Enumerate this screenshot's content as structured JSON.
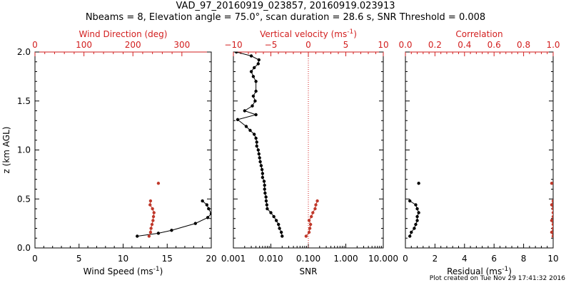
{
  "title_line1": "VAD_97_20160919_023857, 20160919.023913",
  "title_line2": "Nbeams = 8, Elevation angle = 75.0°, scan duration = 28.6 s, SNR Threshold = 0.008",
  "footer": "Plot created on Tue Nov 29 17:41:32 2016",
  "colors": {
    "black_series": "#000000",
    "red_series": "#c0392b",
    "red_axis": "#d21e1e",
    "dotted_line": "#d21e1e"
  },
  "chart_data": [
    {
      "type": "line",
      "panel": "left",
      "ylabel": "z (km AGL)",
      "ylim": [
        0,
        2.0
      ],
      "y_ticks": [
        "0.0",
        "0.5",
        "1.0",
        "1.5",
        "2.0"
      ],
      "bottom_axis": {
        "label": "Wind Speed",
        "unit": "(ms",
        "unit_exp": "-1",
        "unit_close": ")",
        "lim": [
          0,
          20
        ],
        "ticks": [
          "0",
          "5",
          "10",
          "15",
          "20"
        ]
      },
      "top_axis": {
        "label": "Wind Direction (deg)",
        "lim": [
          0,
          360
        ],
        "ticks": [
          "0",
          "100",
          "200",
          "300"
        ]
      },
      "series": [
        {
          "axis": "bottom",
          "color": "black",
          "points": [
            [
              11.6,
              0.12
            ],
            [
              14.0,
              0.15
            ],
            [
              15.5,
              0.18
            ],
            [
              18.2,
              0.25
            ],
            [
              19.6,
              0.31
            ],
            [
              20.0,
              0.35
            ],
            [
              19.7,
              0.4
            ],
            [
              19.5,
              0.44
            ],
            [
              19.0,
              0.48
            ]
          ]
        },
        {
          "axis": "top",
          "color": "red",
          "points": [
            [
              233,
              0.12
            ],
            [
              236,
              0.16
            ],
            [
              237,
              0.2
            ],
            [
              239,
              0.24
            ],
            [
              241,
              0.28
            ],
            [
              242,
              0.32
            ],
            [
              243,
              0.36
            ],
            [
              240,
              0.4
            ],
            [
              235,
              0.44
            ],
            [
              236,
              0.48
            ],
            [
              252,
              0.66
            ]
          ]
        }
      ]
    },
    {
      "type": "line",
      "panel": "middle",
      "ylim": [
        0,
        2.0
      ],
      "bottom_axis": {
        "label": "SNR",
        "scale": "log",
        "lim": [
          0.001,
          10
        ],
        "ticks": [
          "0.001",
          "0.010",
          "0.100",
          "1.000",
          "10.000"
        ]
      },
      "top_axis": {
        "label": "Vertical velocity",
        "unit": "(ms",
        "unit_exp": "-1",
        "unit_close": ")",
        "lim": [
          -10,
          10
        ],
        "ticks": [
          "−10",
          "−5",
          "0",
          "5",
          "10"
        ]
      },
      "series": [
        {
          "axis": "bottom",
          "color": "black",
          "points": [
            [
              0.02,
              0.12
            ],
            [
              0.019,
              0.16
            ],
            [
              0.017,
              0.2
            ],
            [
              0.016,
              0.24
            ],
            [
              0.014,
              0.28
            ],
            [
              0.012,
              0.32
            ],
            [
              0.01,
              0.36
            ],
            [
              0.008,
              0.4
            ],
            [
              0.0078,
              0.44
            ],
            [
              0.0075,
              0.48
            ],
            [
              0.0074,
              0.52
            ],
            [
              0.007,
              0.56
            ],
            [
              0.0068,
              0.6
            ],
            [
              0.0068,
              0.64
            ],
            [
              0.0066,
              0.68
            ],
            [
              0.006,
              0.72
            ],
            [
              0.006,
              0.76
            ],
            [
              0.0058,
              0.8
            ],
            [
              0.0055,
              0.84
            ],
            [
              0.0052,
              0.88
            ],
            [
              0.005,
              0.92
            ],
            [
              0.0048,
              0.96
            ],
            [
              0.0046,
              1.0
            ],
            [
              0.0042,
              1.04
            ],
            [
              0.0042,
              1.08
            ],
            [
              0.004,
              1.12
            ],
            [
              0.0036,
              1.16
            ],
            [
              0.0028,
              1.2
            ],
            [
              0.0022,
              1.24
            ],
            [
              0.0013,
              1.31
            ],
            [
              0.004,
              1.36
            ],
            [
              0.002,
              1.4
            ],
            [
              0.0032,
              1.45
            ],
            [
              0.0038,
              1.5
            ],
            [
              0.0034,
              1.55
            ],
            [
              0.004,
              1.6
            ],
            [
              0.004,
              1.7
            ],
            [
              0.0034,
              1.75
            ],
            [
              0.003,
              1.8
            ],
            [
              0.0036,
              1.84
            ],
            [
              0.0046,
              1.88
            ],
            [
              0.0048,
              1.92
            ],
            [
              0.003,
              1.96
            ],
            [
              0.0012,
              2.0
            ]
          ]
        },
        {
          "axis": "top",
          "color": "red",
          "points": [
            [
              -0.3,
              0.12
            ],
            [
              0.1,
              0.16
            ],
            [
              0.2,
              0.2
            ],
            [
              0.3,
              0.24
            ],
            [
              0.1,
              0.28
            ],
            [
              0.4,
              0.32
            ],
            [
              0.6,
              0.36
            ],
            [
              0.9,
              0.4
            ],
            [
              1.0,
              0.44
            ],
            [
              1.2,
              0.48
            ]
          ]
        }
      ],
      "reference_line": {
        "axis": "top",
        "value": 0,
        "style": "dotted"
      }
    },
    {
      "type": "line",
      "panel": "right",
      "ylim": [
        0,
        2.0
      ],
      "bottom_axis": {
        "label": "Residual",
        "unit": "(ms",
        "unit_exp": "-1",
        "unit_close": ")",
        "lim": [
          0,
          10
        ],
        "ticks": [
          "0",
          "2",
          "4",
          "6",
          "8",
          "10"
        ]
      },
      "top_axis": {
        "label": "Correlation",
        "lim": [
          0,
          1.0
        ],
        "ticks": [
          "0.0",
          "0.2",
          "0.4",
          "0.6",
          "0.8",
          "1.0"
        ]
      },
      "series": [
        {
          "axis": "bottom",
          "color": "black",
          "points": [
            [
              0.3,
              0.12
            ],
            [
              0.4,
              0.16
            ],
            [
              0.6,
              0.2
            ],
            [
              0.7,
              0.24
            ],
            [
              0.8,
              0.28
            ],
            [
              0.8,
              0.32
            ],
            [
              0.9,
              0.36
            ],
            [
              0.8,
              0.4
            ],
            [
              0.7,
              0.44
            ],
            [
              0.3,
              0.48
            ],
            [
              0.9,
              0.66
            ]
          ]
        },
        {
          "axis": "top",
          "color": "red",
          "points": [
            [
              1.0,
              0.12
            ],
            [
              0.99,
              0.16
            ],
            [
              1.0,
              0.2
            ],
            [
              1.0,
              0.24
            ],
            [
              0.99,
              0.28
            ],
            [
              1.0,
              0.32
            ],
            [
              1.0,
              0.36
            ],
            [
              1.0,
              0.4
            ],
            [
              0.99,
              0.44
            ],
            [
              1.0,
              0.48
            ],
            [
              0.99,
              0.66
            ]
          ]
        }
      ]
    }
  ]
}
